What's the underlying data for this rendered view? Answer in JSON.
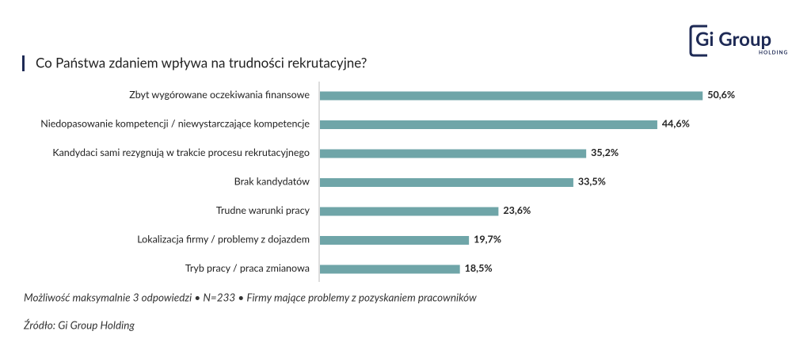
{
  "logo": {
    "name": "Gi Group",
    "subtitle": "HOLDING"
  },
  "chart_data": {
    "type": "bar",
    "orientation": "horizontal",
    "title": "Co Państwa zdaniem wpływa na trudności rekrutacyjne?",
    "categories": [
      "Zbyt wygórowane oczekiwania finansowe",
      "Niedopasowanie kompetencji / niewystarczające kompetencje",
      "Kandydaci sami rezygnują w trakcie procesu rekrutacyjnego",
      "Brak kandydatów",
      "Trudne warunki pracy",
      "Lokalizacja firmy / problemy z dojazdem",
      "Tryb pracy / praca zmianowa"
    ],
    "values": [
      50.6,
      44.6,
      35.2,
      33.5,
      23.6,
      19.7,
      18.5
    ],
    "value_labels": [
      "50,6%",
      "44,6%",
      "35,2%",
      "33,5%",
      "23,6%",
      "19,7%",
      "18,5%"
    ],
    "color": "#6fa5a8",
    "notes": [
      "Możliwość maksymalnie 3 odpowiedzi • N=233 • Firmy mające problemy z pozyskaniem pracowników",
      "Źródło: Gi Group Holding"
    ]
  }
}
